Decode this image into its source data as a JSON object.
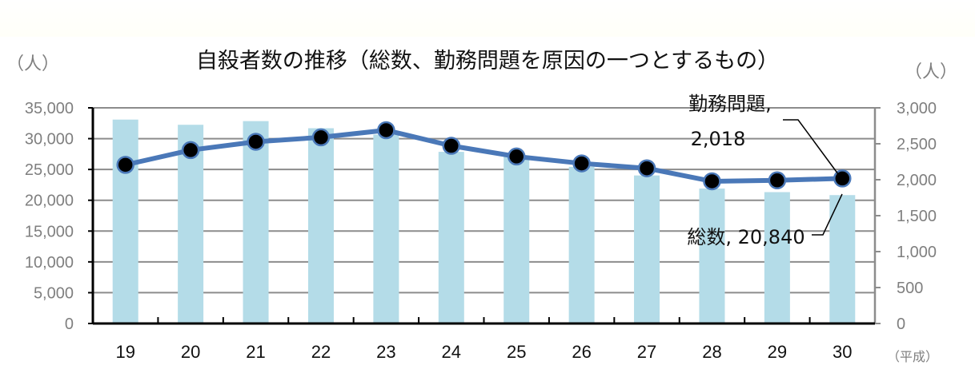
{
  "title": "自殺者数の推移（総数、勤務問題を原因の一つとするもの）",
  "left_unit": "（人）",
  "right_unit": "（人）",
  "x_era_label": "（平成）",
  "annotations": {
    "work": {
      "line1": "勤務問題,",
      "line2": "2,018"
    },
    "total": {
      "text": "総数, 20,840"
    }
  },
  "colors": {
    "bar": "#b4dce8",
    "line": "#4a78b8",
    "marker": "#000000",
    "grid": "#8c8c8c",
    "axis_left": "#000000",
    "axis_right": "#8c8c8c",
    "tick_text": "#7f7f7f"
  },
  "chart_data": {
    "type": "bar+line",
    "title": "自殺者数の推移（総数、勤務問題を原因の一つとするもの）",
    "xlabel": "（平成）",
    "ylabel_left": "（人）",
    "ylabel_right": "（人）",
    "categories": [
      "19",
      "20",
      "21",
      "22",
      "23",
      "24",
      "25",
      "26",
      "27",
      "28",
      "29",
      "30"
    ],
    "series": [
      {
        "name": "総数",
        "type": "bar",
        "axis": "left",
        "values": [
          33093,
          32249,
          32845,
          31690,
          30651,
          27858,
          27283,
          25427,
          24025,
          21897,
          21321,
          20840
        ]
      },
      {
        "name": "勤務問題",
        "type": "line",
        "axis": "right",
        "values": [
          2207,
          2412,
          2528,
          2590,
          2689,
          2472,
          2323,
          2227,
          2159,
          1978,
          1991,
          2018
        ]
      }
    ],
    "ylim_left": [
      0,
      35000
    ],
    "ylim_right": [
      0,
      3000
    ],
    "yticks_left": [
      "0",
      "5,000",
      "10,000",
      "15,000",
      "20,000",
      "25,000",
      "30,000",
      "35,000"
    ],
    "yticks_right": [
      "0",
      "500",
      "1,000",
      "1,500",
      "2,000",
      "2,500",
      "3,000"
    ],
    "grid": true,
    "legend": "none (data labels on last points)",
    "data_labels": [
      {
        "series": "勤務問題",
        "category": "30",
        "text": "勤務問題, 2,018"
      },
      {
        "series": "総数",
        "category": "30",
        "text": "総数, 20,840"
      }
    ]
  }
}
